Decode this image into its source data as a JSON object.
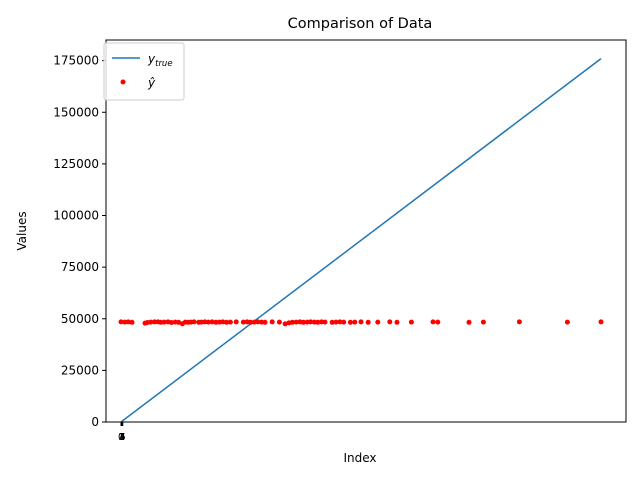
{
  "chart_data": {
    "type": "scatter",
    "title": "Comparison of Data",
    "xlabel": "Index",
    "ylabel": "Values",
    "ylim": [
      0,
      185000
    ],
    "y_ticks": [
      0,
      25000,
      50000,
      75000,
      100000,
      125000,
      150000,
      175000
    ],
    "y_tick_labels": [
      "0",
      "25000",
      "50000",
      "75000",
      "100000",
      "125000",
      "150000",
      "175000"
    ],
    "x_tick_labels": [
      "0",
      "1",
      "2",
      "3",
      "4",
      "5"
    ],
    "grid": false,
    "legend_position": "upper-left",
    "series": [
      {
        "name": "y_true",
        "kind": "line",
        "color": "#1f77b4",
        "x": [
          0,
          1
        ],
        "y": [
          0,
          176000
        ]
      },
      {
        "name": "ŷ",
        "kind": "points",
        "color": "#ff0000",
        "x": [
          0.0,
          0.008,
          0.015,
          0.023,
          0.05,
          0.055,
          0.062,
          0.07,
          0.077,
          0.083,
          0.09,
          0.098,
          0.105,
          0.113,
          0.12,
          0.128,
          0.134,
          0.14,
          0.146,
          0.152,
          0.162,
          0.168,
          0.175,
          0.182,
          0.19,
          0.198,
          0.205,
          0.212,
          0.22,
          0.228,
          0.24,
          0.255,
          0.263,
          0.27,
          0.278,
          0.285,
          0.293,
          0.3,
          0.315,
          0.33,
          0.342,
          0.35,
          0.357,
          0.365,
          0.373,
          0.38,
          0.388,
          0.395,
          0.403,
          0.41,
          0.418,
          0.425,
          0.44,
          0.448,
          0.456,
          0.464,
          0.478,
          0.487,
          0.5,
          0.515,
          0.535,
          0.56,
          0.575,
          0.605,
          0.65,
          0.66,
          0.725,
          0.755,
          0.83,
          0.93,
          1.0
        ],
        "y": [
          48500,
          48400,
          48500,
          48300,
          47900,
          48200,
          48400,
          48500,
          48500,
          48300,
          48400,
          48500,
          48200,
          48400,
          48300,
          47600,
          48400,
          48300,
          48400,
          48500,
          48300,
          48400,
          48500,
          48400,
          48500,
          48300,
          48400,
          48500,
          48300,
          48400,
          48500,
          48400,
          48500,
          48300,
          48400,
          48500,
          48400,
          48300,
          48500,
          48400,
          47500,
          48000,
          48300,
          48400,
          48500,
          48300,
          48400,
          48500,
          48400,
          48300,
          48500,
          48400,
          48300,
          48400,
          48500,
          48400,
          48300,
          48400,
          48500,
          48300,
          48400,
          48500,
          48300,
          48400,
          48500,
          48400,
          48300,
          48400,
          48500,
          48400,
          48500
        ]
      }
    ]
  }
}
